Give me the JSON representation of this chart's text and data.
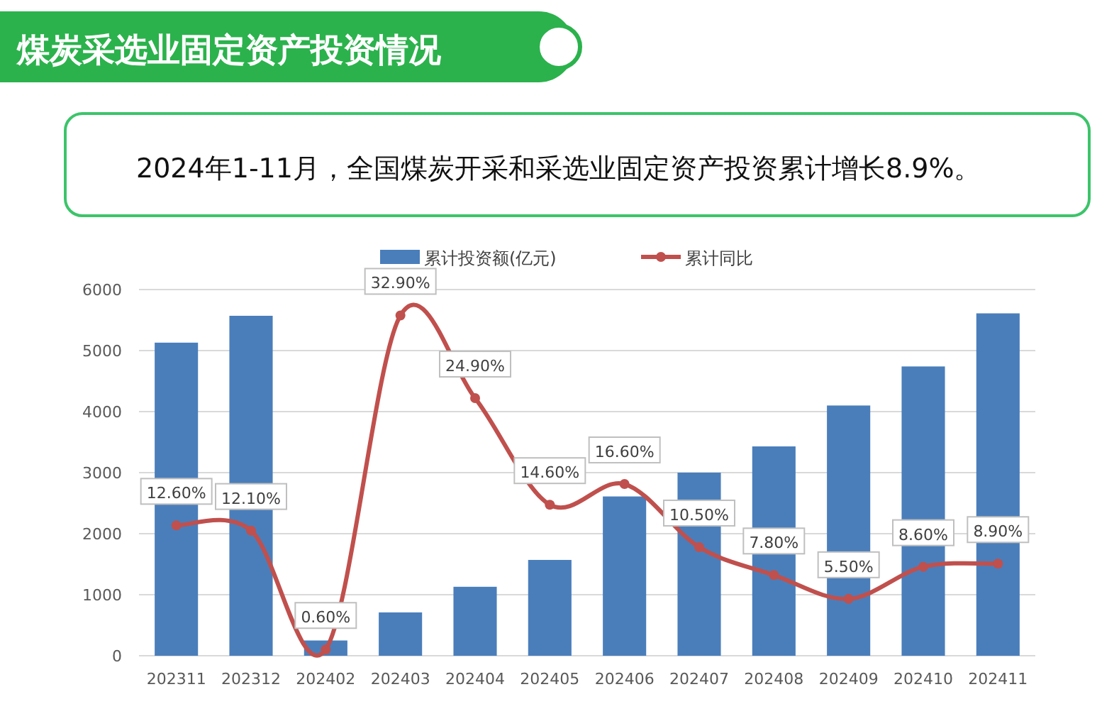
{
  "chart_data": {
    "type": "bar",
    "title": "煤炭采选业固定资产投资情况",
    "subtitle": "2024年1-11月，全国煤炭开采和采选业固定资产投资累计增长8.9%。",
    "categories": [
      "202311",
      "202312",
      "202402",
      "202403",
      "202404",
      "202405",
      "202406",
      "202407",
      "202408",
      "202409",
      "202410",
      "202411"
    ],
    "series": [
      {
        "name": "累计投资额(亿元)",
        "color": "#4a7ebb",
        "values": [
          5130,
          5570,
          250,
          710,
          1130,
          1570,
          2610,
          3000,
          3430,
          4100,
          4740,
          5610
        ]
      },
      {
        "name": "累计同比",
        "type": "line",
        "axis": "y2",
        "color": "#c0504d",
        "marker": "circle",
        "values": [
          12.6,
          12.1,
          0.6,
          32.9,
          24.9,
          14.6,
          16.6,
          10.5,
          7.8,
          5.5,
          8.6,
          8.9
        ],
        "value_labels": [
          "12.60%",
          "12.10%",
          "0.60%",
          "32.90%",
          "24.90%",
          "14.60%",
          "16.60%",
          "10.50%",
          "7.80%",
          "5.50%",
          "8.60%",
          "8.90%"
        ]
      }
    ],
    "ylim": [
      0,
      6000
    ],
    "yticks": [
      0,
      1000,
      2000,
      3000,
      4000,
      5000,
      6000
    ],
    "y2lim": [
      0,
      35.4
    ],
    "grid": "y",
    "legend": "top"
  }
}
